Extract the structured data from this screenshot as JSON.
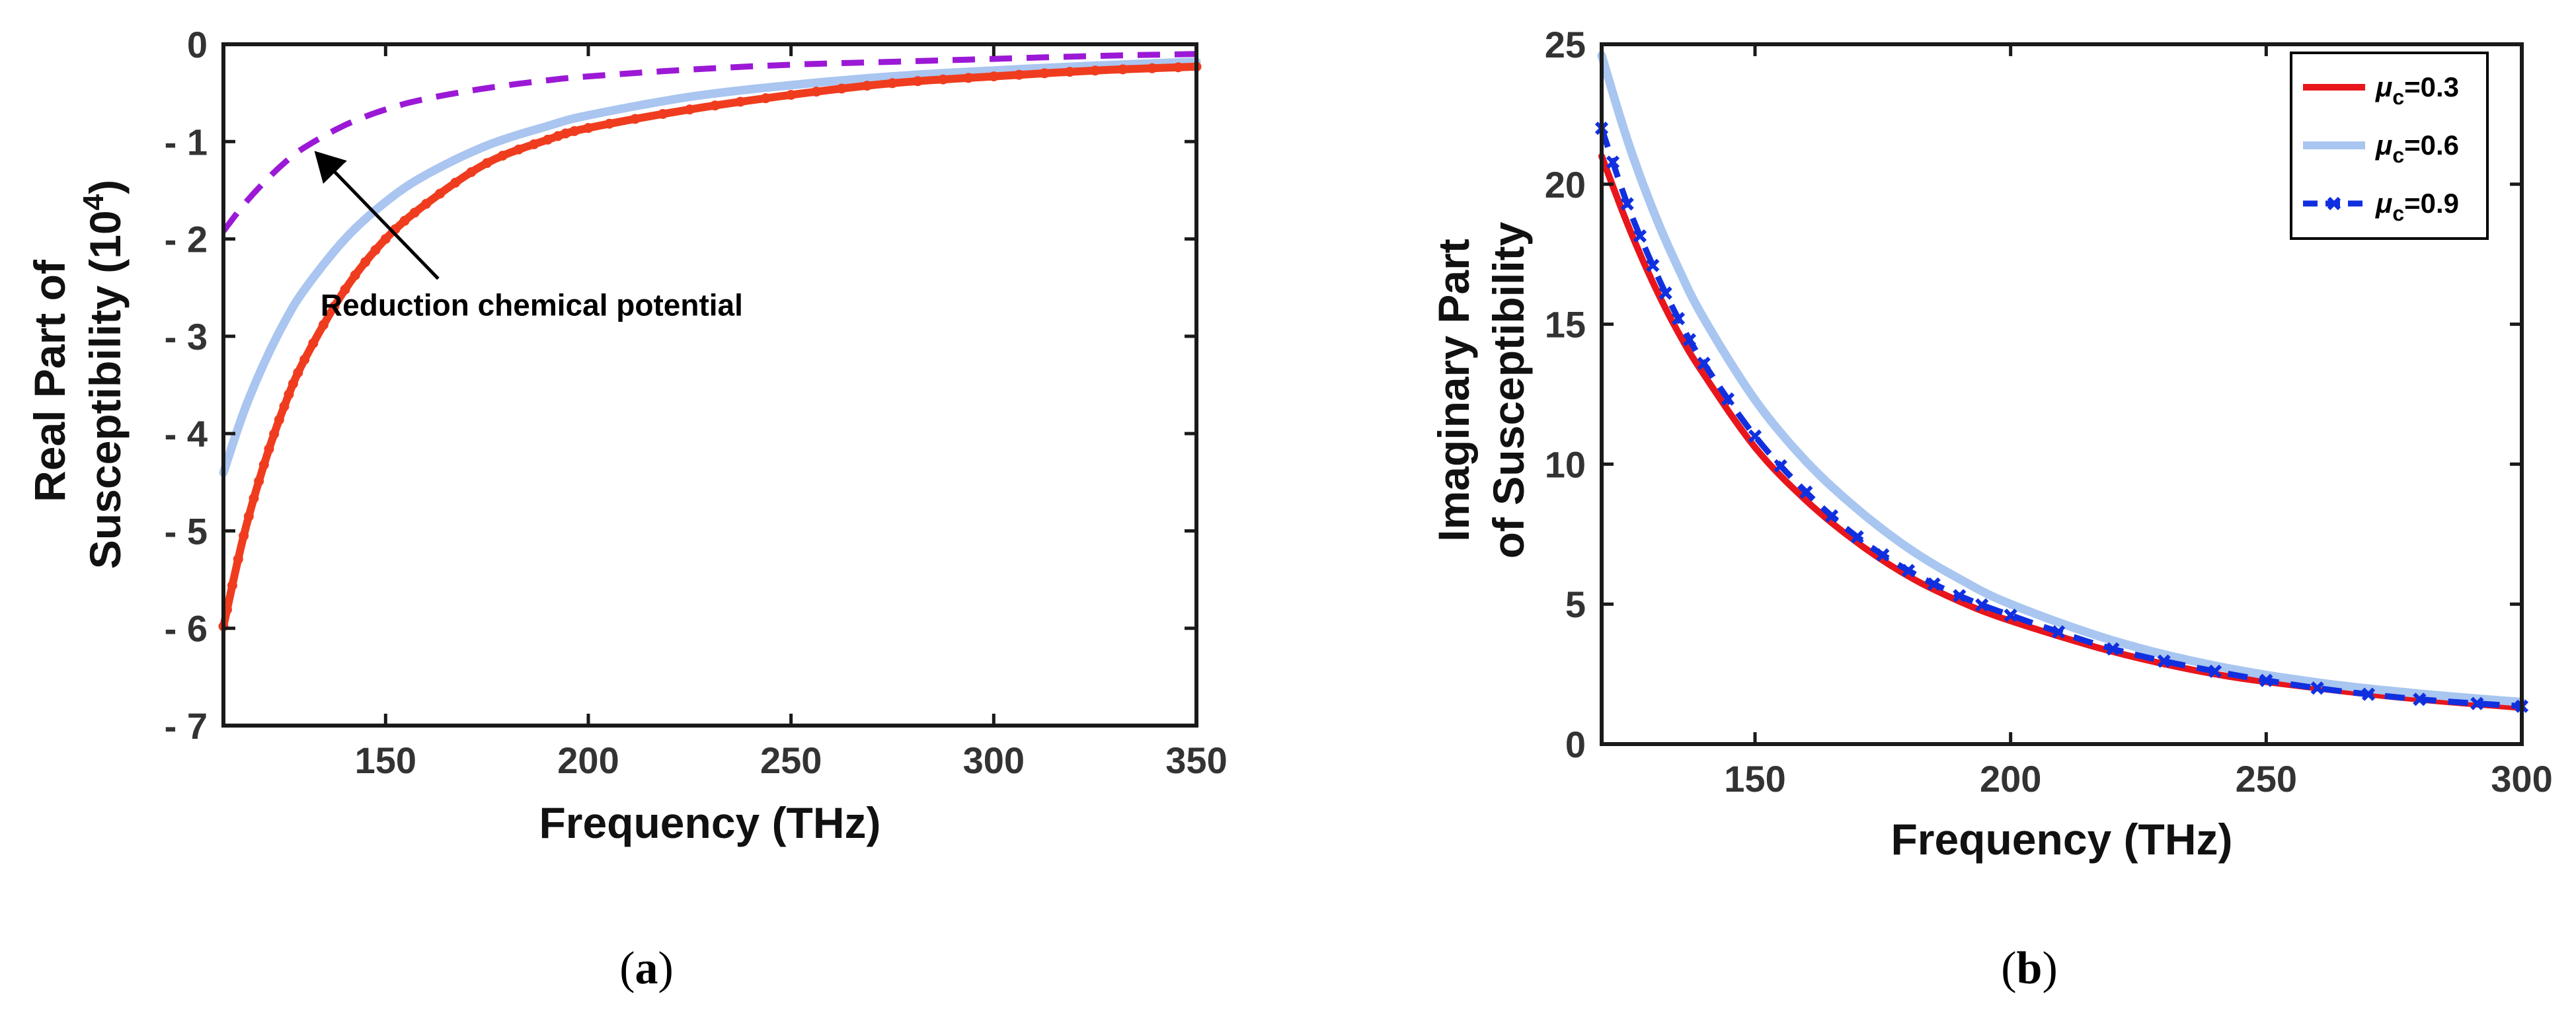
{
  "chart_data": [
    {
      "type": "line",
      "panel": "a",
      "caption_letter": "a",
      "xlabel": "Frequency (THz)",
      "ylabel_line1": "Real Part of",
      "ylabel_line2": "Susceptibility (10",
      "ylabel_sup": "4",
      "ylabel_end": ")",
      "xlim": [
        110,
        350
      ],
      "ylim": [
        -7,
        0
      ],
      "xticks": [
        150,
        200,
        250,
        300,
        350
      ],
      "yticks": [
        0,
        -1,
        -2,
        -3,
        -4,
        -5,
        -6,
        -7
      ],
      "ytick_labels": [
        "0",
        "- 1",
        "- 2",
        "- 3",
        "- 4",
        "- 5",
        "- 6",
        "- 7"
      ],
      "annotation": {
        "text": "Reduction chemical potential",
        "text_at": [
          132,
          -2.68
        ],
        "arrow_head": [
          133,
          -1.12
        ]
      },
      "series": [
        {
          "name": "purple-dashed",
          "color": "#9b19d6",
          "style": "dashed",
          "x": [
            110,
            115,
            120,
            125,
            130,
            140,
            150,
            160,
            175,
            190,
            200,
            225,
            250,
            275,
            300,
            325,
            350
          ],
          "y": [
            -1.92,
            -1.65,
            -1.42,
            -1.22,
            -1.06,
            -0.83,
            -0.67,
            -0.56,
            -0.45,
            -0.37,
            -0.33,
            -0.26,
            -0.21,
            -0.18,
            -0.15,
            -0.12,
            -0.1
          ]
        },
        {
          "name": "light-blue-solid",
          "color": "#a9c5f0",
          "style": "solid",
          "x": [
            110,
            115,
            120,
            125,
            130,
            140,
            150,
            160,
            175,
            190,
            200,
            225,
            250,
            275,
            300,
            325,
            350
          ],
          "y": [
            -4.4,
            -3.78,
            -3.28,
            -2.86,
            -2.52,
            -2.0,
            -1.62,
            -1.34,
            -1.04,
            -0.84,
            -0.73,
            -0.54,
            -0.42,
            -0.33,
            -0.27,
            -0.22,
            -0.18
          ]
        },
        {
          "name": "red-dotted-marker",
          "color": "#f03c1e",
          "style": "solid-marker",
          "x": [
            110,
            115,
            120,
            125,
            130,
            140,
            150,
            160,
            175,
            190,
            200,
            225,
            250,
            275,
            300,
            325,
            350
          ],
          "y": [
            -5.98,
            -5.05,
            -4.32,
            -3.72,
            -3.24,
            -2.52,
            -2.0,
            -1.64,
            -1.22,
            -0.98,
            -0.86,
            -0.67,
            -0.52,
            -0.4,
            -0.33,
            -0.27,
            -0.23
          ]
        }
      ]
    },
    {
      "type": "line",
      "panel": "b",
      "caption_letter": "b",
      "xlabel": "Frequency (THz)",
      "ylabel_line1": "Imaginary Part",
      "ylabel_line2": "of Susceptibility",
      "xlim": [
        120,
        300
      ],
      "ylim": [
        0,
        25
      ],
      "xticks": [
        150,
        200,
        250,
        300
      ],
      "yticks": [
        0,
        5,
        10,
        15,
        20,
        25
      ],
      "legend_position": "top-right",
      "series": [
        {
          "name": "μc=0.3",
          "legend_main": "μ",
          "legend_sub": "c",
          "legend_value": "=0.3",
          "color": "#e8161c",
          "style": "solid",
          "x": [
            120,
            125,
            130,
            135,
            140,
            150,
            160,
            170,
            180,
            190,
            200,
            220,
            240,
            260,
            280,
            300
          ],
          "y": [
            21.0,
            18.6,
            16.5,
            14.7,
            13.2,
            10.6,
            8.7,
            7.2,
            6.0,
            5.1,
            4.4,
            3.3,
            2.5,
            2.0,
            1.6,
            1.3
          ]
        },
        {
          "name": "μc=0.6",
          "legend_main": "μ",
          "legend_sub": "c",
          "legend_value": "=0.6",
          "color": "#a8c6f0",
          "style": "solid",
          "x": [
            120,
            125,
            130,
            135,
            140,
            150,
            160,
            170,
            180,
            190,
            200,
            220,
            240,
            260,
            280,
            300
          ],
          "y": [
            24.6,
            21.6,
            19.1,
            17.0,
            15.2,
            12.3,
            10.1,
            8.4,
            7.0,
            5.9,
            5.0,
            3.7,
            2.8,
            2.2,
            1.8,
            1.5
          ]
        },
        {
          "name": "μc=0.9",
          "legend_main": "μ",
          "legend_sub": "c",
          "legend_value": "=0.9",
          "color": "#1030e0",
          "style": "dashed-marker",
          "x": [
            120,
            125,
            130,
            135,
            140,
            150,
            160,
            170,
            180,
            190,
            200,
            220,
            240,
            260,
            280,
            300
          ],
          "y": [
            22.0,
            19.3,
            17.1,
            15.2,
            13.6,
            11.0,
            9.0,
            7.4,
            6.2,
            5.3,
            4.6,
            3.4,
            2.6,
            2.0,
            1.6,
            1.35
          ]
        }
      ]
    }
  ]
}
